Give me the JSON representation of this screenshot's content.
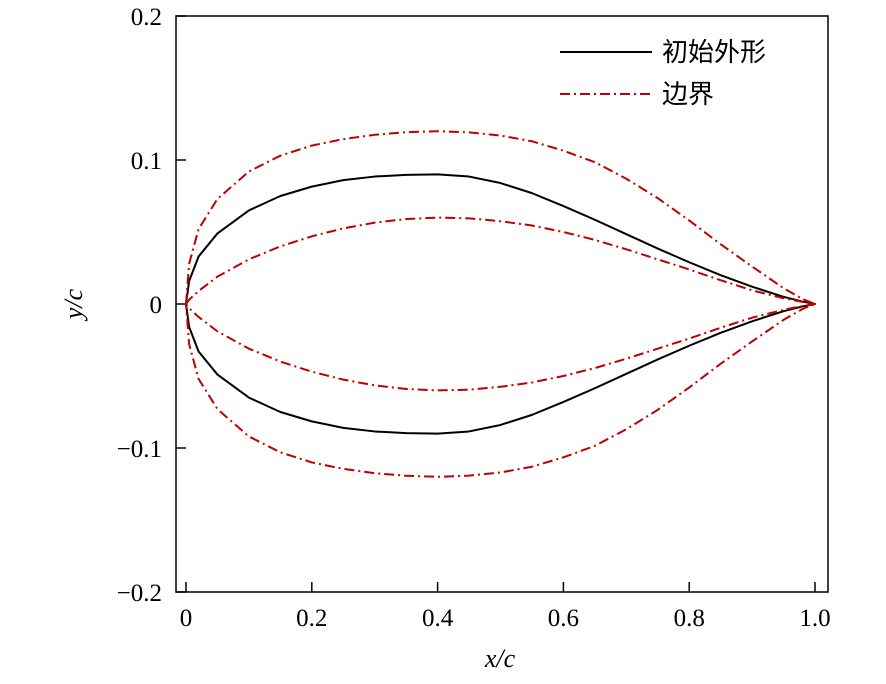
{
  "chart_data": {
    "type": "line",
    "title": "",
    "xlabel": "x/c",
    "ylabel": "y/c",
    "xlim": [
      0,
      1.0
    ],
    "ylim": [
      -0.2,
      0.2
    ],
    "xticks": [
      "0",
      "0.2",
      "0.4",
      "0.6",
      "0.8",
      "1.0"
    ],
    "yticks": [
      "0.2",
      "0.1",
      "0",
      "−0.1",
      "−0.2"
    ],
    "grid": false,
    "legend_position": "top-right",
    "series": [
      {
        "name": "初始外形",
        "color": "#000000",
        "style": "solid",
        "x": [
          0,
          0.005,
          0.02,
          0.05,
          0.1,
          0.15,
          0.2,
          0.25,
          0.3,
          0.35,
          0.4,
          0.45,
          0.5,
          0.55,
          0.6,
          0.65,
          0.7,
          0.75,
          0.8,
          0.85,
          0.9,
          0.95,
          0.98,
          1.0
        ],
        "upper": [
          0,
          0.016,
          0.033,
          0.049,
          0.065,
          0.075,
          0.0815,
          0.086,
          0.0885,
          0.0897,
          0.09,
          0.0885,
          0.084,
          0.077,
          0.068,
          0.0585,
          0.0485,
          0.0385,
          0.029,
          0.02,
          0.012,
          0.005,
          0.0017,
          0
        ],
        "lower": [
          0,
          -0.016,
          -0.033,
          -0.049,
          -0.065,
          -0.075,
          -0.0815,
          -0.086,
          -0.0885,
          -0.0897,
          -0.09,
          -0.0885,
          -0.084,
          -0.077,
          -0.068,
          -0.0585,
          -0.0485,
          -0.0385,
          -0.029,
          -0.02,
          -0.012,
          -0.005,
          -0.0017,
          0
        ]
      },
      {
        "name": "边界",
        "color": "#c00000",
        "style": "dash-dot",
        "boundaries": [
          {
            "x": [
              0,
              0.005,
              0.02,
              0.05,
              0.1,
              0.15,
              0.2,
              0.25,
              0.3,
              0.35,
              0.4,
              0.45,
              0.5,
              0.55,
              0.6,
              0.65,
              0.7,
              0.75,
              0.8,
              0.85,
              0.9,
              0.95,
              0.98,
              1.0
            ],
            "upper": [
              0,
              0.028,
              0.052,
              0.073,
              0.092,
              0.103,
              0.11,
              0.1145,
              0.1175,
              0.1193,
              0.12,
              0.1192,
              0.117,
              0.113,
              0.1065,
              0.0985,
              0.087,
              0.0735,
              0.058,
              0.0415,
              0.026,
              0.011,
              0.0035,
              0
            ],
            "lower": [
              0,
              -0.028,
              -0.052,
              -0.073,
              -0.092,
              -0.103,
              -0.11,
              -0.1145,
              -0.1175,
              -0.1193,
              -0.12,
              -0.1192,
              -0.117,
              -0.113,
              -0.1065,
              -0.0985,
              -0.087,
              -0.0735,
              -0.058,
              -0.0415,
              -0.026,
              -0.011,
              -0.0035,
              0
            ]
          },
          {
            "x": [
              0,
              0.005,
              0.02,
              0.05,
              0.1,
              0.15,
              0.2,
              0.25,
              0.3,
              0.35,
              0.4,
              0.45,
              0.5,
              0.55,
              0.6,
              0.65,
              0.7,
              0.75,
              0.8,
              0.85,
              0.9,
              0.95,
              0.98,
              1.0
            ],
            "upper": [
              0,
              0.003,
              0.009,
              0.019,
              0.031,
              0.04,
              0.047,
              0.0525,
              0.0565,
              0.059,
              0.06,
              0.0595,
              0.0575,
              0.0545,
              0.05,
              0.0445,
              0.038,
              0.031,
              0.024,
              0.0165,
              0.0095,
              0.004,
              0.0015,
              0
            ],
            "lower": [
              0,
              -0.003,
              -0.009,
              -0.019,
              -0.031,
              -0.04,
              -0.047,
              -0.0525,
              -0.0565,
              -0.059,
              -0.06,
              -0.0595,
              -0.0575,
              -0.0545,
              -0.05,
              -0.0445,
              -0.038,
              -0.031,
              -0.024,
              -0.0165,
              -0.0095,
              -0.004,
              -0.0015,
              0
            ]
          }
        ]
      }
    ]
  }
}
